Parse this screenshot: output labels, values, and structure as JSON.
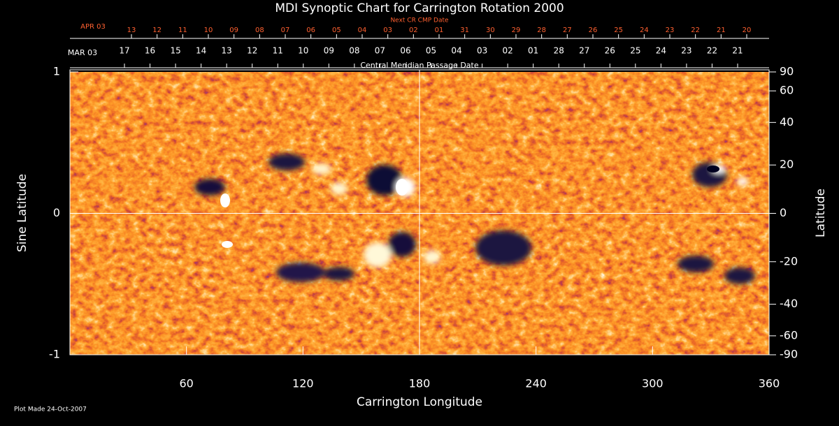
{
  "chart_data": {
    "type": "image",
    "title": "MDI Synoptic Chart for Carrington Rotation 2000",
    "x_label": "Carrington Longitude",
    "y_label": "Sine Latitude",
    "y2_label": "Latitude",
    "xlim": [
      0,
      360
    ],
    "xticks": [
      60,
      120,
      180,
      240,
      300,
      360
    ],
    "ylim": [
      -1,
      1
    ],
    "yticks": [
      -1,
      0,
      1
    ],
    "y2lim": [
      -90,
      90
    ],
    "y2scale": "sine",
    "y2ticks": [
      90,
      60,
      40,
      20,
      0,
      -20,
      -40,
      -60,
      -90
    ],
    "top_axis_label": "Central Meridian Passage Date",
    "top_axis_start": "MAR 03",
    "top_axis_dates": [
      "17",
      "16",
      "15",
      "14",
      "13",
      "12",
      "11",
      "10",
      "09",
      "08",
      "07",
      "06",
      "05",
      "04",
      "03",
      "02",
      "01",
      "28",
      "27",
      "26",
      "25",
      "24",
      "23",
      "22",
      "21"
    ],
    "next_axis_label": "Next CR CMP Date",
    "next_axis_start": "APR 03",
    "next_axis_dates": [
      "13",
      "12",
      "11",
      "10",
      "09",
      "08",
      "07",
      "06",
      "05",
      "04",
      "03",
      "02",
      "01",
      "31",
      "30",
      "29",
      "28",
      "27",
      "26",
      "25",
      "24",
      "23",
      "22",
      "21",
      "20"
    ],
    "footnote": "Plot Made 24-Oct-2007"
  }
}
